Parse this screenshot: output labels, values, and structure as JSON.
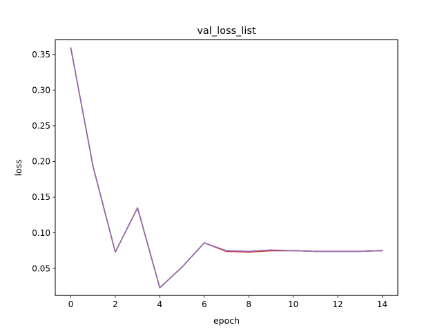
{
  "chart_data": {
    "type": "line",
    "title": "val_loss_list",
    "xlabel": "epoch",
    "ylabel": "loss",
    "xlim": [
      -0.7,
      14.7
    ],
    "ylim": [
      0.0122,
      0.3704
    ],
    "xticks": [
      0,
      2,
      4,
      6,
      8,
      10,
      12,
      14
    ],
    "xtick_labels": [
      "0",
      "2",
      "4",
      "6",
      "8",
      "10",
      "12",
      "14"
    ],
    "yticks": [
      0.05,
      0.1,
      0.15,
      0.2,
      0.25,
      0.3,
      0.35
    ],
    "ytick_labels": [
      "0.05",
      "0.10",
      "0.15",
      "0.20",
      "0.25",
      "0.30",
      "0.35"
    ],
    "grid": false,
    "legend": "none",
    "x": [
      0,
      1,
      2,
      3,
      4,
      5,
      6,
      7,
      8,
      9,
      10,
      11,
      12,
      13,
      14
    ],
    "series": [
      {
        "color": "#1f77b4",
        "values": [
          0.359,
          0.193,
          0.073,
          0.135,
          0.023,
          0.052,
          0.086,
          0.074,
          0.073,
          0.075,
          0.075,
          0.074,
          0.074,
          0.074,
          0.075
        ]
      },
      {
        "color": "#ff7f0e",
        "values": [
          0.359,
          0.193,
          0.073,
          0.135,
          0.023,
          0.052,
          0.086,
          0.074,
          0.073,
          0.075,
          0.075,
          0.074,
          0.074,
          0.074,
          0.075
        ]
      },
      {
        "color": "#2ca02c",
        "values": [
          0.359,
          0.193,
          0.073,
          0.135,
          0.023,
          0.052,
          0.086,
          0.074,
          0.074,
          0.075,
          0.075,
          0.074,
          0.074,
          0.074,
          0.075
        ]
      },
      {
        "color": "#d62728",
        "values": [
          0.359,
          0.193,
          0.073,
          0.135,
          0.023,
          0.052,
          0.086,
          0.074,
          0.073,
          0.075,
          0.075,
          0.074,
          0.074,
          0.074,
          0.075
        ]
      },
      {
        "color": "#9467bd",
        "values": [
          0.359,
          0.193,
          0.073,
          0.135,
          0.023,
          0.052,
          0.086,
          0.075,
          0.074,
          0.076,
          0.075,
          0.074,
          0.074,
          0.074,
          0.075
        ]
      }
    ]
  }
}
